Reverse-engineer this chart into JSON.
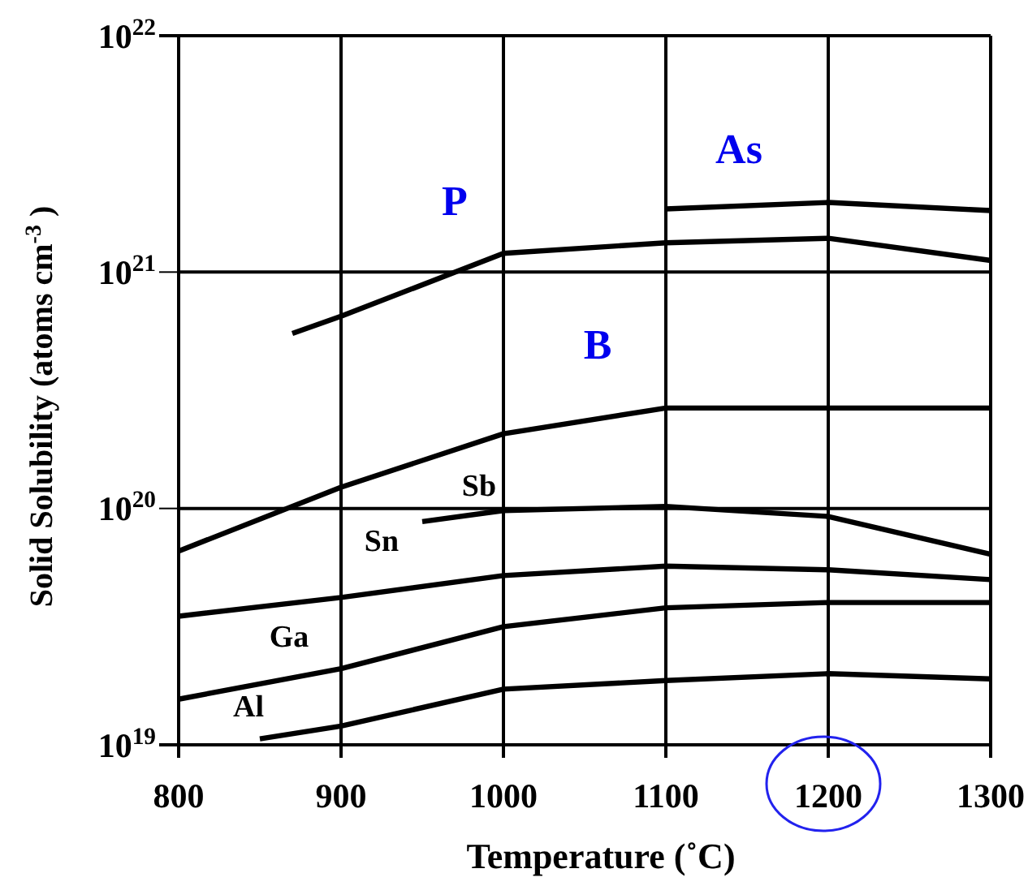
{
  "chart_data": {
    "type": "line",
    "xlabel": "Temperature (˚C)",
    "ylabel": "Solid Solubility (atoms cm$^{-3}$ )",
    "log": true,
    "grid": true,
    "marker": "none",
    "line_style": "solid",
    "xlim": [
      800,
      1300
    ],
    "xticks": [
      800,
      900,
      1000,
      1100,
      1200,
      1300
    ],
    "ylim": [
      1e+19,
      1e+22
    ],
    "yticks": [
      {
        "value": 1e+19,
        "label": "10$^{19}$"
      },
      {
        "value": 1e+20,
        "label": "10$^{20}$"
      },
      {
        "value": 1e+21,
        "label": "10$^{21}$"
      },
      {
        "value": 1e+22,
        "label": "10$^{22}$"
      }
    ],
    "series": [
      {
        "name": "As",
        "color": "#000000",
        "x": [
          1100,
          1200,
          1300
        ],
        "values": [
          1.85e+21,
          1.97e+21,
          1.82e+21
        ]
      },
      {
        "name": "P",
        "color": "#000000",
        "x": [
          870,
          900,
          1000,
          1100,
          1200,
          1300
        ],
        "values": [
          5.5e+20,
          6.5e+20,
          1.2e+21,
          1.33e+21,
          1.39e+21,
          1.12e+21
        ]
      },
      {
        "name": "B",
        "color": "#000000",
        "x": [
          800,
          900,
          1000,
          1100,
          1200,
          1300
        ],
        "values": [
          6.6e+19,
          1.23e+20,
          2.07e+20,
          2.66e+20,
          2.66e+20,
          2.66e+20
        ]
      },
      {
        "name": "Sb",
        "color": "#000000",
        "x": [
          950,
          1000,
          1100,
          1200,
          1300
        ],
        "values": [
          8.8e+19,
          9.8e+19,
          1.02e+20,
          9.25e+19,
          6.4e+19
        ]
      },
      {
        "name": "Sn",
        "color": "#000000",
        "x": [
          800,
          900,
          1000,
          1100,
          1200,
          1300
        ],
        "values": [
          3.5e+19,
          4.2e+19,
          5.2e+19,
          5.7e+19,
          5.5e+19,
          5e+19
        ]
      },
      {
        "name": "Ga",
        "color": "#000000",
        "x": [
          800,
          900,
          1000,
          1100,
          1200,
          1300
        ],
        "values": [
          1.56e+19,
          2.1e+19,
          3.16e+19,
          3.8e+19,
          4e+19,
          4e+19
        ]
      },
      {
        "name": "Al",
        "color": "#000000",
        "x": [
          850,
          900,
          1000,
          1100,
          1200,
          1300
        ],
        "values": [
          1.06e+19,
          1.2e+19,
          1.72e+19,
          1.87e+19,
          2e+19,
          1.9e+19
        ]
      }
    ]
  }
}
